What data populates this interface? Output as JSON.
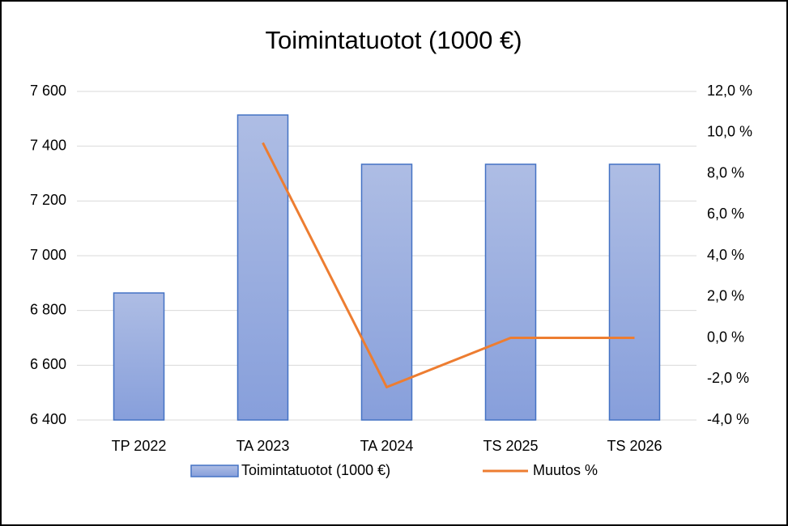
{
  "chart_data": {
    "type": "bar",
    "title": "Toimintatuotot (1000 €)",
    "categories": [
      "TP 2022",
      "TA 2023",
      "TA 2024",
      "TS 2025",
      "TS 2026"
    ],
    "series": [
      {
        "name": "Toimintatuotot (1000 €)",
        "type": "bar",
        "color": "#4472c4",
        "values": [
          6864,
          7514,
          7334,
          7334,
          7334
        ]
      },
      {
        "name": "Muutos %",
        "type": "line",
        "axis": "y2",
        "color": "#ed7d31",
        "values": [
          null,
          9.5,
          -2.4,
          0,
          0
        ]
      }
    ],
    "ylim": [
      6400,
      7600
    ],
    "yticks": [
      {
        "value": 6400,
        "label": "6 400"
      },
      {
        "value": 6600,
        "label": "6 600"
      },
      {
        "value": 6800,
        "label": "6 800"
      },
      {
        "value": 7000,
        "label": "7 000"
      },
      {
        "value": 7200,
        "label": "7 200"
      },
      {
        "value": 7400,
        "label": "7 400"
      },
      {
        "value": 7600,
        "label": "7 600"
      }
    ],
    "y2lim": [
      -4,
      12
    ],
    "y2ticks": [
      {
        "value": -4,
        "label": "-4,0 %"
      },
      {
        "value": -2,
        "label": "-2,0 %"
      },
      {
        "value": 0,
        "label": "0,0 %"
      },
      {
        "value": 2,
        "label": "2,0 %"
      },
      {
        "value": 4,
        "label": "4,0 %"
      },
      {
        "value": 6,
        "label": "6,0 %"
      },
      {
        "value": 8,
        "label": "8,0 %"
      },
      {
        "value": 10,
        "label": "10,0 %"
      },
      {
        "value": 12,
        "label": "12,0 %"
      }
    ],
    "grid": true,
    "legend": "bottom"
  }
}
